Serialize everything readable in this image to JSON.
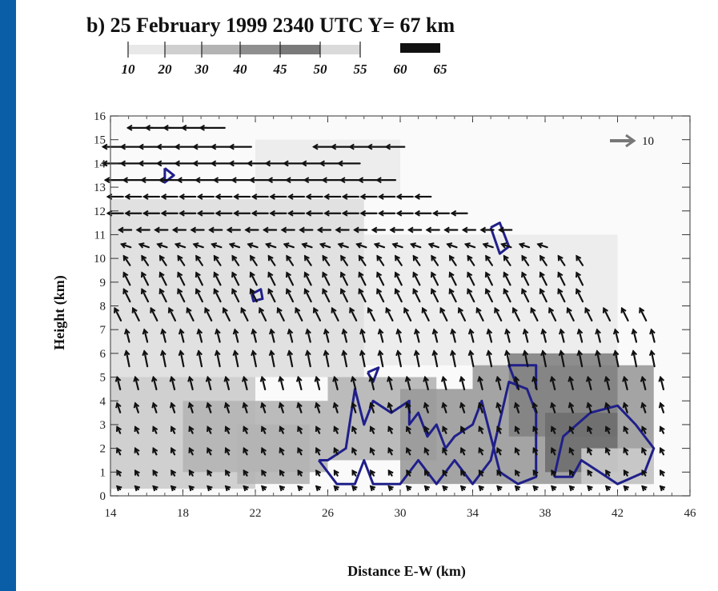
{
  "chart_data": {
    "type": "heatmap",
    "title": "b)  25 February 1999 2340 UTC Y= 67 km",
    "xlabel": "Distance E-W (km)",
    "ylabel": "Height (km)",
    "xlim": [
      14,
      46
    ],
    "ylim": [
      0,
      16
    ],
    "x_ticks": [
      "14",
      "18",
      "22",
      "26",
      "30",
      "34",
      "38",
      "42",
      "46"
    ],
    "y_ticks": [
      "0",
      "1",
      "2",
      "3",
      "4",
      "5",
      "6",
      "7",
      "8",
      "9",
      "10",
      "11",
      "12",
      "13",
      "14",
      "15",
      "16"
    ],
    "colorbar": {
      "labels": [
        "10",
        "20",
        "30",
        "40",
        "45",
        "50",
        "55",
        "60",
        "65"
      ],
      "colors": [
        "#e8e8e8",
        "#cfcfcf",
        "#b3b3b3",
        "#8f8f8f",
        "#7a7a7a",
        "#dadada",
        "#111111"
      ]
    },
    "reference_vector": {
      "label": "10",
      "color": "#777777"
    },
    "contour_color": "#1f1f8a",
    "reflectivity_cells": [
      {
        "x": [
          22,
          30
        ],
        "y": [
          12.5,
          15.0
        ],
        "dbz": 10
      },
      {
        "x": [
          14,
          28
        ],
        "y": [
          5.0,
          12.5
        ],
        "dbz": 15
      },
      {
        "x": [
          28,
          42
        ],
        "y": [
          5.5,
          11.0
        ],
        "dbz": 12
      },
      {
        "x": [
          14,
          22
        ],
        "y": [
          0.3,
          5.0
        ],
        "dbz": 22
      },
      {
        "x": [
          18,
          26
        ],
        "y": [
          1.0,
          4.0
        ],
        "dbz": 30
      },
      {
        "x": [
          21,
          25
        ],
        "y": [
          0.5,
          3.0
        ],
        "dbz": 38
      },
      {
        "x": [
          26,
          32
        ],
        "y": [
          1.5,
          5.0
        ],
        "dbz": 35
      },
      {
        "x": [
          30,
          34
        ],
        "y": [
          0.5,
          4.5
        ],
        "dbz": 40
      },
      {
        "x": [
          34,
          44
        ],
        "y": [
          0.5,
          5.5
        ],
        "dbz": 42
      },
      {
        "x": [
          36,
          42
        ],
        "y": [
          2.5,
          6.0
        ],
        "dbz": 47
      },
      {
        "x": [
          38,
          42
        ],
        "y": [
          1.0,
          3.5
        ],
        "dbz": 52
      },
      {
        "x": [
          40,
          44
        ],
        "y": [
          0.5,
          2.0
        ],
        "dbz": 20
      }
    ],
    "contours_40dbz": [
      [
        [
          25.5,
          1.5
        ],
        [
          26.5,
          0.5
        ],
        [
          27.5,
          0.5
        ],
        [
          28,
          1.5
        ],
        [
          28.5,
          0.5
        ],
        [
          30,
          0.5
        ],
        [
          31,
          1.5
        ],
        [
          32,
          0.5
        ],
        [
          33,
          1.5
        ],
        [
          34,
          0.5
        ],
        [
          35,
          1.5
        ],
        [
          36,
          4.8
        ],
        [
          37,
          4.5
        ],
        [
          37.5,
          3.5
        ],
        [
          37.5,
          0.8
        ],
        [
          36.5,
          0.5
        ],
        [
          35.5,
          1.0
        ],
        [
          35,
          2.5
        ],
        [
          34.5,
          4.0
        ],
        [
          34,
          3.0
        ],
        [
          33,
          2.5
        ],
        [
          32.5,
          2.0
        ],
        [
          32,
          3.0
        ],
        [
          31.5,
          2.5
        ],
        [
          31,
          3.5
        ],
        [
          30.5,
          3.0
        ],
        [
          30.5,
          4.0
        ],
        [
          29.5,
          3.5
        ],
        [
          28.5,
          4.0
        ],
        [
          28,
          3.0
        ],
        [
          27.5,
          4.5
        ],
        [
          27,
          2.0
        ],
        [
          26,
          1.5
        ],
        [
          25.5,
          1.5
        ]
      ],
      [
        [
          36.5,
          4.5
        ],
        [
          36,
          5.5
        ],
        [
          37.5,
          5.5
        ],
        [
          37.5,
          4.5
        ]
      ],
      [
        [
          38.5,
          0.8
        ],
        [
          39,
          2.5
        ],
        [
          40.5,
          3.5
        ],
        [
          42,
          3.8
        ],
        [
          43,
          3.0
        ],
        [
          44,
          2.0
        ],
        [
          43.5,
          1.0
        ],
        [
          42,
          0.5
        ],
        [
          41,
          1.0
        ],
        [
          40,
          1.5
        ],
        [
          39.5,
          0.8
        ],
        [
          38.5,
          0.8
        ]
      ],
      [
        [
          35,
          11.3
        ],
        [
          35.5,
          11.5
        ],
        [
          36,
          10.5
        ],
        [
          35.5,
          10.2
        ],
        [
          35,
          11.3
        ]
      ],
      [
        [
          17,
          13.8
        ],
        [
          17.5,
          13.5
        ],
        [
          17,
          13.2
        ],
        [
          17,
          13.8
        ]
      ],
      [
        [
          21.8,
          8.5
        ],
        [
          22.3,
          8.7
        ],
        [
          22.4,
          8.3
        ],
        [
          21.9,
          8.2
        ],
        [
          21.8,
          8.5
        ]
      ],
      [
        [
          28.2,
          5.2
        ],
        [
          28.8,
          5.4
        ],
        [
          28.5,
          4.8
        ],
        [
          28.2,
          5.2
        ]
      ]
    ],
    "wind_vectors": [
      {
        "y": 15.5,
        "x_range": [
          16,
          20
        ],
        "u": -8,
        "w": 0
      },
      {
        "y": 14.7,
        "x_range": [
          14.5,
          22
        ],
        "u": -7,
        "w": 0
      },
      {
        "y": 14.7,
        "x_range": [
          26,
          30
        ],
        "u": -6,
        "w": 0
      },
      {
        "y": 14.0,
        "x_range": [
          14.5,
          28
        ],
        "u": -7,
        "w": 0
      },
      {
        "y": 13.3,
        "x_range": [
          14.5,
          30
        ],
        "u": -6,
        "w": 0
      },
      {
        "y": 12.6,
        "x_range": [
          14.5,
          32
        ],
        "u": -5,
        "w": 0
      },
      {
        "y": 11.9,
        "x_range": [
          14.5,
          34
        ],
        "u": -5,
        "w": 0
      },
      {
        "y": 11.2,
        "x_range": [
          15,
          36
        ],
        "u": -4,
        "w": 0
      },
      {
        "y": 10.5,
        "x_range": [
          15,
          38
        ],
        "u": -3,
        "w": 0.5
      },
      {
        "y": 9.8,
        "x_range": [
          15,
          40
        ],
        "u": -2,
        "w": 1.5
      },
      {
        "y": 9.0,
        "x_range": [
          15,
          40
        ],
        "u": -2,
        "w": 2
      },
      {
        "y": 8.3,
        "x_range": [
          15,
          40
        ],
        "u": -2,
        "w": 2
      },
      {
        "y": 7.5,
        "x_range": [
          14.5,
          44
        ],
        "u": -2,
        "w": 2
      },
      {
        "y": 6.6,
        "x_range": [
          15,
          44
        ],
        "u": -1,
        "w": 2
      },
      {
        "y": 5.6,
        "x_range": [
          15,
          44
        ],
        "u": -1,
        "w": 2.5
      },
      {
        "y": 4.6,
        "x_range": [
          14.5,
          45
        ],
        "u": -1,
        "w": 2
      },
      {
        "y": 3.6,
        "x_range": [
          14.5,
          45
        ],
        "u": -1,
        "w": 1.5
      },
      {
        "y": 2.7,
        "x_range": [
          14.5,
          45
        ],
        "u": -1,
        "w": 1
      },
      {
        "y": 1.8,
        "x_range": [
          14.5,
          45
        ],
        "u": -1,
        "w": 1
      },
      {
        "y": 0.9,
        "x_range": [
          14.5,
          45
        ],
        "u": -1,
        "w": 0.8
      },
      {
        "y": 0.3,
        "x_range": [
          14.5,
          45
        ],
        "u": -1,
        "w": 0.5
      }
    ]
  }
}
